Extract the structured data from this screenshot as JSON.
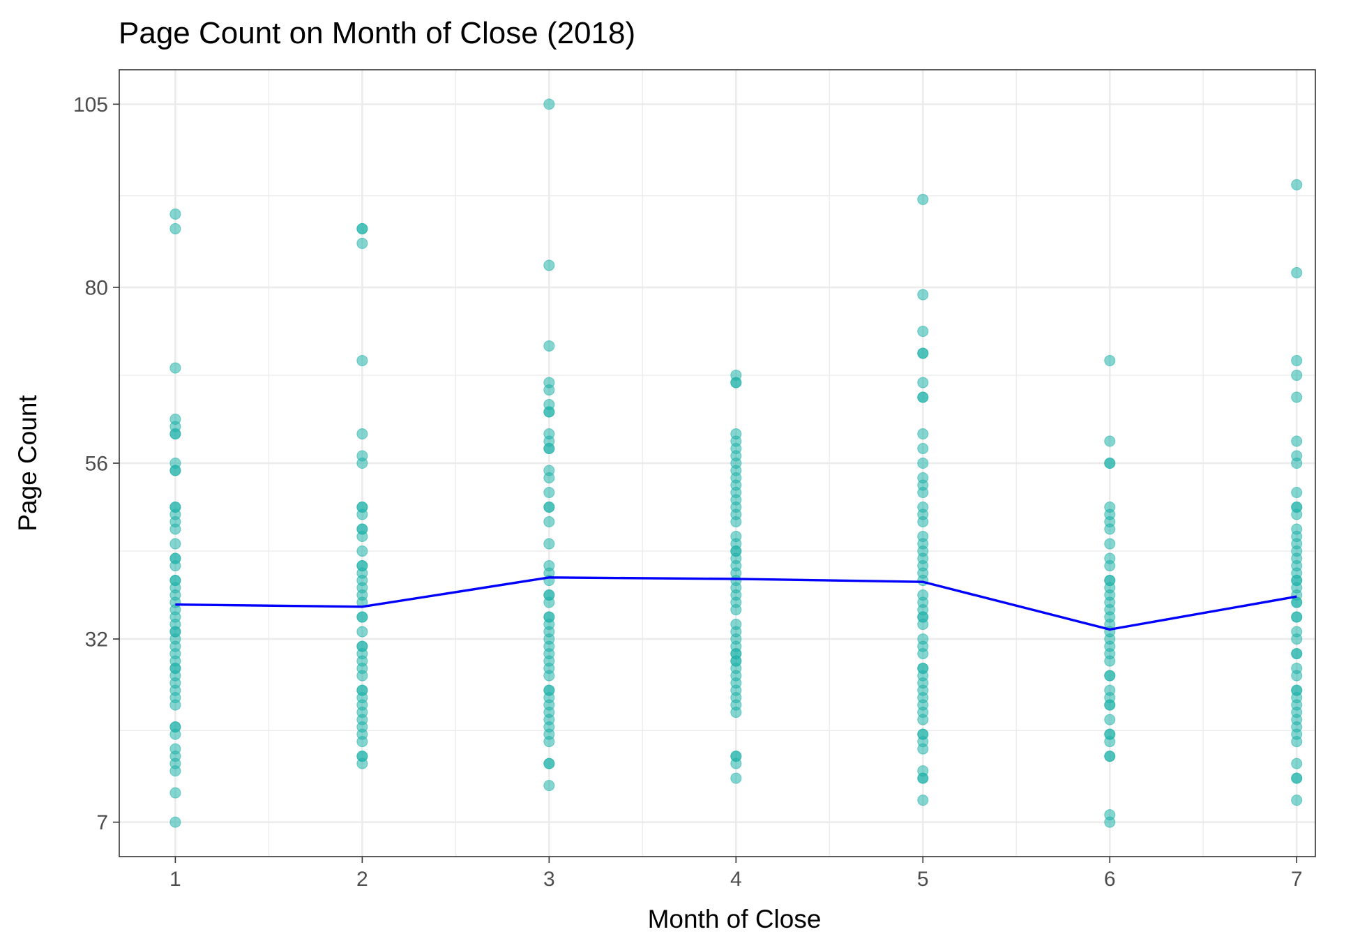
{
  "chart_data": {
    "type": "scatter",
    "title": "Page Count on Month of Close (2018)",
    "xlabel": "Month of Close",
    "ylabel": "Page Count",
    "x_ticks": [
      1,
      2,
      3,
      4,
      5,
      6,
      7
    ],
    "y_ticks": [
      7,
      32,
      56,
      80,
      105
    ],
    "xlim": [
      0.7,
      7.1
    ],
    "ylim": [
      2.3,
      109.7
    ],
    "grid": true,
    "colors": {
      "points": "#20b2aa",
      "line": "#0000ff",
      "grid": "#ebebeb",
      "panel_border": "#333333"
    },
    "points": [
      {
        "x": 1,
        "values": [
          7,
          11,
          14,
          15,
          16,
          17,
          19,
          20,
          20,
          23,
          24,
          25,
          26,
          27,
          28,
          28,
          29,
          30,
          31,
          32,
          33,
          33,
          34,
          35,
          36,
          37,
          38,
          39,
          40,
          40,
          42,
          43,
          43,
          45,
          47,
          48,
          49,
          50,
          50,
          55,
          55,
          56,
          60,
          60,
          61,
          62,
          69,
          88,
          90
        ]
      },
      {
        "x": 2,
        "values": [
          15,
          16,
          16,
          18,
          19,
          20,
          21,
          22,
          23,
          24,
          25,
          25,
          27,
          28,
          29,
          30,
          31,
          31,
          33,
          35,
          35,
          37,
          38,
          39,
          40,
          41,
          42,
          42,
          44,
          46,
          47,
          47,
          49,
          50,
          50,
          56,
          57,
          60,
          70,
          86,
          88,
          88
        ]
      },
      {
        "x": 3,
        "values": [
          12,
          15,
          15,
          18,
          19,
          20,
          21,
          22,
          23,
          24,
          25,
          25,
          27,
          28,
          29,
          30,
          31,
          32,
          33,
          34,
          35,
          35,
          37,
          38,
          38,
          40,
          41,
          42,
          45,
          48,
          50,
          50,
          52,
          54,
          55,
          58,
          58,
          59,
          60,
          63,
          63,
          64,
          66,
          67,
          72,
          83,
          105
        ]
      },
      {
        "x": 4,
        "values": [
          13,
          15,
          16,
          16,
          22,
          23,
          24,
          25,
          26,
          27,
          28,
          29,
          29,
          30,
          30,
          31,
          32,
          33,
          34,
          36,
          37,
          38,
          39,
          40,
          41,
          42,
          43,
          44,
          44,
          45,
          46,
          48,
          49,
          50,
          51,
          52,
          53,
          54,
          55,
          56,
          57,
          58,
          59,
          60,
          67,
          67,
          68
        ]
      },
      {
        "x": 5,
        "values": [
          10,
          13,
          13,
          14,
          17,
          18,
          19,
          19,
          21,
          22,
          23,
          24,
          25,
          26,
          27,
          28,
          28,
          30,
          31,
          32,
          34,
          35,
          35,
          36,
          37,
          38,
          40,
          41,
          42,
          43,
          44,
          45,
          46,
          48,
          49,
          50,
          52,
          53,
          54,
          56,
          58,
          60,
          65,
          65,
          67,
          71,
          71,
          74,
          79,
          92
        ]
      },
      {
        "x": 6,
        "values": [
          7,
          8,
          16,
          16,
          18,
          19,
          19,
          21,
          23,
          23,
          24,
          25,
          27,
          27,
          29,
          30,
          31,
          32,
          33,
          34,
          35,
          36,
          37,
          38,
          39,
          40,
          40,
          42,
          43,
          45,
          47,
          48,
          49,
          50,
          56,
          56,
          59,
          70
        ]
      },
      {
        "x": 7,
        "values": [
          10,
          13,
          13,
          15,
          18,
          19,
          20,
          21,
          22,
          23,
          24,
          25,
          25,
          27,
          28,
          30,
          30,
          32,
          33,
          35,
          35,
          37,
          37,
          38,
          39,
          40,
          40,
          41,
          42,
          43,
          44,
          45,
          46,
          47,
          49,
          50,
          50,
          52,
          56,
          57,
          59,
          65,
          68,
          70,
          82,
          94
        ]
      }
    ],
    "mean_line": {
      "x": [
        1,
        2,
        3,
        4,
        5,
        6,
        7
      ],
      "values": [
        36.7,
        36.4,
        40.4,
        40.2,
        39.8,
        33.3,
        37.8
      ]
    }
  }
}
